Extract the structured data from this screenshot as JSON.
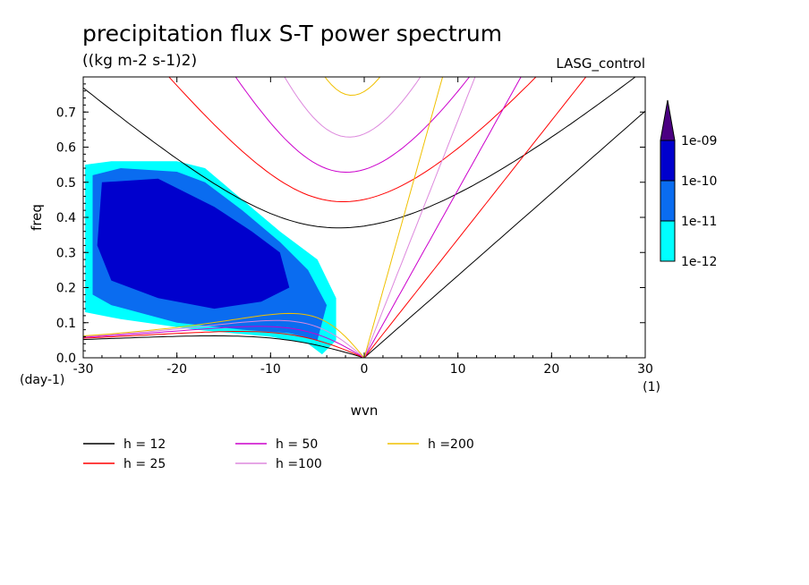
{
  "chart_data": {
    "type": "contour",
    "title": "precipitation flux S-T power spectrum",
    "subtitle": "((kg m-2 s-1)2)",
    "run_label": "LASG_control",
    "xlabel": "wvn",
    "ylabel": "freq",
    "x_unit": "(1)",
    "y_unit": "(day-1)",
    "xlim": [
      -30,
      30
    ],
    "ylim": [
      0,
      0.8
    ],
    "x_ticks": [
      -30,
      -20,
      -10,
      0,
      10,
      20,
      30
    ],
    "x_tick_labels": [
      "-30",
      "-20",
      "-10",
      "0",
      "10",
      "20",
      "30"
    ],
    "y_ticks": [
      0,
      0.1,
      0.2,
      0.3,
      0.4,
      0.5,
      0.6,
      0.7
    ],
    "y_tick_labels": [
      "0.0",
      "0.1",
      "0.2",
      "0.3",
      "0.4",
      "0.5",
      "0.6",
      "0.7"
    ],
    "colorbar": {
      "levels": [
        "1e-12",
        "1e-11",
        "1e-10",
        "1e-09"
      ],
      "colors": [
        "#00ffff",
        "#0a6cf0",
        "#0000cd",
        "#4b0082"
      ],
      "extend": "max"
    },
    "spectrum_regions": [
      {
        "level": "1e-12",
        "color": "#00ffff",
        "outline": [
          [
            -29.8,
            0.55
          ],
          [
            -27,
            0.56
          ],
          [
            -20,
            0.56
          ],
          [
            -17,
            0.54
          ],
          [
            -13,
            0.45
          ],
          [
            -9,
            0.36
          ],
          [
            -5,
            0.28
          ],
          [
            -3,
            0.17
          ],
          [
            -3,
            0.05
          ],
          [
            -4.5,
            0.01
          ],
          [
            -6,
            0.04
          ],
          [
            -10,
            0.06
          ],
          [
            -18,
            0.08
          ],
          [
            -26,
            0.11
          ],
          [
            -29.8,
            0.13
          ]
        ]
      },
      {
        "level": "1e-11",
        "color": "#0a6cf0",
        "outline": [
          [
            -29,
            0.52
          ],
          [
            -26,
            0.54
          ],
          [
            -20,
            0.53
          ],
          [
            -17,
            0.5
          ],
          [
            -13,
            0.42
          ],
          [
            -9,
            0.33
          ],
          [
            -6,
            0.25
          ],
          [
            -4,
            0.15
          ],
          [
            -5,
            0.05
          ],
          [
            -8,
            0.07
          ],
          [
            -13,
            0.08
          ],
          [
            -20,
            0.1
          ],
          [
            -27,
            0.15
          ],
          [
            -29,
            0.18
          ]
        ]
      },
      {
        "level": "1e-10",
        "color": "#0000cd",
        "outline": [
          [
            -28,
            0.5
          ],
          [
            -22,
            0.51
          ],
          [
            -19,
            0.47
          ],
          [
            -16,
            0.43
          ],
          [
            -12,
            0.36
          ],
          [
            -9,
            0.3
          ],
          [
            -8,
            0.2
          ],
          [
            -11,
            0.16
          ],
          [
            -16,
            0.14
          ],
          [
            -22,
            0.17
          ],
          [
            -27,
            0.22
          ],
          [
            -28.5,
            0.32
          ]
        ]
      }
    ],
    "series": [
      {
        "name": "h = 12",
        "color": "#000000",
        "h": 12
      },
      {
        "name": "h = 25",
        "color": "#ff0000",
        "h": 25
      },
      {
        "name": "h = 50",
        "color": "#cc00cc",
        "h": 50
      },
      {
        "name": "h =100",
        "color": "#dd88dd",
        "h": 100
      },
      {
        "name": "h =200",
        "color": "#f0c000",
        "h": 200
      }
    ],
    "legend_placement": "bottom"
  }
}
